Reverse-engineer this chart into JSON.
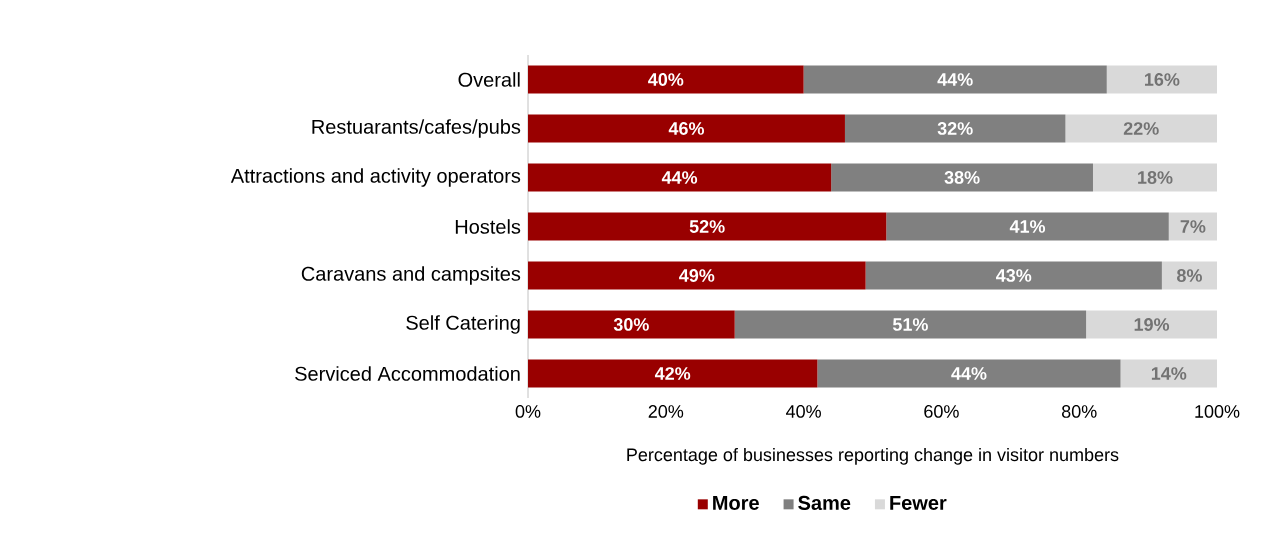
{
  "chart_data": {
    "type": "bar",
    "orientation": "horizontal",
    "stacked": true,
    "legend": "bottom",
    "categories": [
      "Overall",
      "Restuarants/cafes/pubs",
      "Attractions and activity operators",
      "Hostels",
      "Caravans and campsites",
      "Self Catering",
      "Serviced Accommodation"
    ],
    "xlabel": "Percentage of businesses reporting change  in visitor numbers",
    "xlim": [
      0,
      100
    ],
    "xticks": [
      {
        "value": 0,
        "label": "0%"
      },
      {
        "value": 20,
        "label": "20%"
      },
      {
        "value": 40,
        "label": "40%"
      },
      {
        "value": 60,
        "label": "60%"
      },
      {
        "value": 80,
        "label": "80%"
      },
      {
        "value": 100,
        "label": "100%"
      }
    ],
    "series": [
      {
        "name": "More",
        "color": "#990000",
        "values": [
          40,
          46,
          44,
          52,
          49,
          30,
          42
        ],
        "value_labels": [
          "40%",
          "46%",
          "44%",
          "52%",
          "49%",
          "30%",
          "42%"
        ]
      },
      {
        "name": "Same",
        "color": "#808080",
        "values": [
          44,
          32,
          38,
          41,
          43,
          51,
          44
        ],
        "value_labels": [
          "44%",
          "32%",
          "38%",
          "41%",
          "43%",
          "51%",
          "44%"
        ]
      },
      {
        "name": "Fewer",
        "color": "#d9d9d9",
        "values": [
          16,
          22,
          18,
          7,
          8,
          19,
          14
        ],
        "value_labels": [
          "16%",
          "22%",
          "18%",
          "7%",
          "8%",
          "19%",
          "14%"
        ]
      }
    ]
  }
}
